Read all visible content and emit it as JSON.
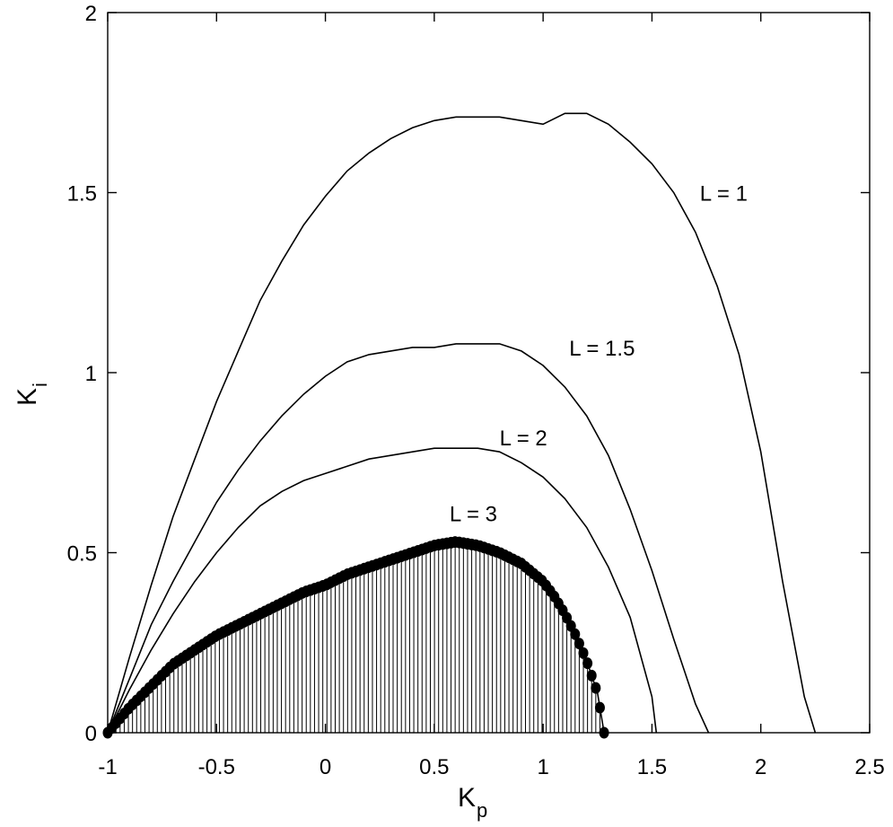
{
  "chart_data": {
    "type": "line",
    "xlabel": "K",
    "xlabel_sub": "p",
    "ylabel": "K",
    "ylabel_sub": "i",
    "xlim": [
      -1,
      2.5
    ],
    "ylim": [
      0,
      2
    ],
    "xticks": [
      -1,
      -0.5,
      0,
      0.5,
      1,
      1.5,
      2,
      2.5
    ],
    "xtick_labels": [
      "-1",
      "-0.5",
      "0",
      "0.5",
      "1",
      "1.5",
      "2",
      "2.5"
    ],
    "yticks": [
      0,
      0.5,
      1,
      1.5,
      2
    ],
    "ytick_labels": [
      "0",
      "0.5",
      "1",
      "1.5",
      "2"
    ],
    "grid": false,
    "series": [
      {
        "name": "L = 1",
        "label_at": [
          1.72,
          1.5
        ],
        "x": [
          -1,
          -0.9,
          -0.8,
          -0.7,
          -0.6,
          -0.5,
          -0.4,
          -0.3,
          -0.2,
          -0.1,
          0,
          0.1,
          0.2,
          0.3,
          0.4,
          0.5,
          0.6,
          0.7,
          0.8,
          0.9,
          1.0,
          1.1,
          1.2,
          1.3,
          1.4,
          1.5,
          1.6,
          1.7,
          1.8,
          1.9,
          2.0,
          2.1,
          2.2,
          2.25
        ],
        "y": [
          0,
          0.21,
          0.41,
          0.6,
          0.76,
          0.92,
          1.06,
          1.2,
          1.31,
          1.41,
          1.49,
          1.56,
          1.61,
          1.65,
          1.68,
          1.7,
          1.71,
          1.71,
          1.71,
          1.7,
          1.69,
          1.72,
          1.72,
          1.69,
          1.64,
          1.58,
          1.5,
          1.39,
          1.24,
          1.05,
          0.78,
          0.42,
          0.1,
          0
        ]
      },
      {
        "name": "L = 1.5",
        "label_at": [
          1.12,
          1.07
        ],
        "x": [
          -1,
          -0.9,
          -0.8,
          -0.7,
          -0.6,
          -0.5,
          -0.4,
          -0.3,
          -0.2,
          -0.1,
          0,
          0.1,
          0.2,
          0.3,
          0.4,
          0.5,
          0.6,
          0.7,
          0.8,
          0.9,
          1.0,
          1.1,
          1.2,
          1.3,
          1.4,
          1.5,
          1.6,
          1.7,
          1.76
        ],
        "y": [
          0,
          0.15,
          0.3,
          0.42,
          0.53,
          0.64,
          0.73,
          0.81,
          0.88,
          0.94,
          0.99,
          1.03,
          1.05,
          1.06,
          1.07,
          1.07,
          1.08,
          1.08,
          1.08,
          1.06,
          1.02,
          0.96,
          0.88,
          0.77,
          0.62,
          0.45,
          0.26,
          0.08,
          0
        ]
      },
      {
        "name": "L = 2",
        "label_at": [
          0.8,
          0.82
        ],
        "x": [
          -1,
          -0.9,
          -0.8,
          -0.7,
          -0.6,
          -0.5,
          -0.4,
          -0.3,
          -0.2,
          -0.1,
          0,
          0.1,
          0.2,
          0.3,
          0.4,
          0.5,
          0.6,
          0.7,
          0.8,
          0.9,
          1.0,
          1.1,
          1.2,
          1.3,
          1.4,
          1.5,
          1.52
        ],
        "y": [
          0,
          0.12,
          0.23,
          0.33,
          0.42,
          0.5,
          0.57,
          0.63,
          0.67,
          0.7,
          0.72,
          0.74,
          0.76,
          0.77,
          0.78,
          0.79,
          0.79,
          0.79,
          0.78,
          0.75,
          0.71,
          0.65,
          0.57,
          0.46,
          0.32,
          0.1,
          0
        ]
      },
      {
        "name": "L = 3",
        "label_at": [
          0.57,
          0.61
        ],
        "markers": true,
        "stems": true,
        "x": [
          -1,
          -0.9,
          -0.8,
          -0.7,
          -0.6,
          -0.5,
          -0.4,
          -0.3,
          -0.2,
          -0.1,
          0,
          0.1,
          0.2,
          0.3,
          0.4,
          0.5,
          0.6,
          0.7,
          0.8,
          0.9,
          1.0,
          1.05,
          1.1,
          1.15,
          1.2,
          1.25,
          1.28
        ],
        "y": [
          0,
          0.07,
          0.13,
          0.19,
          0.23,
          0.27,
          0.3,
          0.33,
          0.36,
          0.39,
          0.41,
          0.44,
          0.46,
          0.48,
          0.5,
          0.52,
          0.53,
          0.52,
          0.5,
          0.47,
          0.42,
          0.38,
          0.33,
          0.27,
          0.2,
          0.11,
          0
        ]
      }
    ]
  }
}
